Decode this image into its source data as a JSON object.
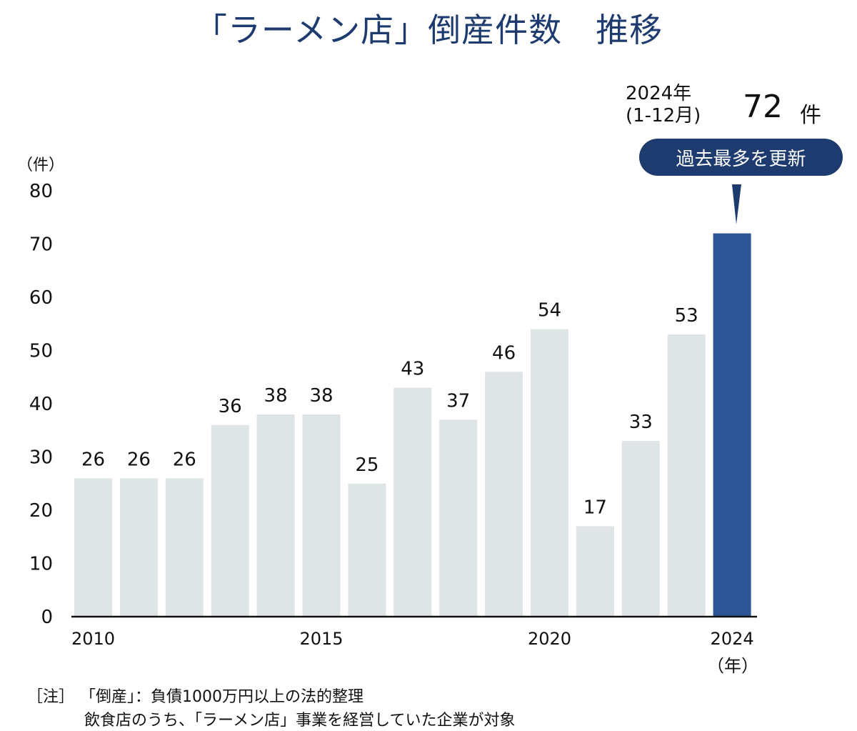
{
  "chart_data": {
    "type": "bar",
    "title": "「ラーメン店」倒産件数　推移",
    "ylabel": "（件）",
    "xlabel": "（年）",
    "ylim": [
      0,
      80
    ],
    "yticks": [
      0,
      10,
      20,
      30,
      40,
      50,
      60,
      70,
      80
    ],
    "categories": [
      "2010",
      "2011",
      "2012",
      "2013",
      "2014",
      "2015",
      "2016",
      "2017",
      "2018",
      "2019",
      "2020",
      "2021",
      "2022",
      "2023",
      "2024"
    ],
    "x_tick_labels": {
      "2010": "2010",
      "2015": "2015",
      "2020": "2020",
      "2024": "2024"
    },
    "values": [
      26,
      26,
      26,
      36,
      38,
      38,
      25,
      43,
      37,
      46,
      54,
      17,
      33,
      53,
      72
    ],
    "bar_color": "#dfe4e7",
    "highlight_color": "#2e5596",
    "highlight_index": 14,
    "grid": false,
    "legend": "none"
  },
  "callout": {
    "period_line1": "2024年",
    "period_line2": "(1-12月)",
    "value": "72",
    "unit": "件",
    "badge": "過去最多を更新"
  },
  "notes": {
    "label": "［注］",
    "line1": "「倒産」：負債1000万円以上の法的整理",
    "line2": "飲食店のうち、「ラーメン店」事業を経営していた企業が対象"
  }
}
